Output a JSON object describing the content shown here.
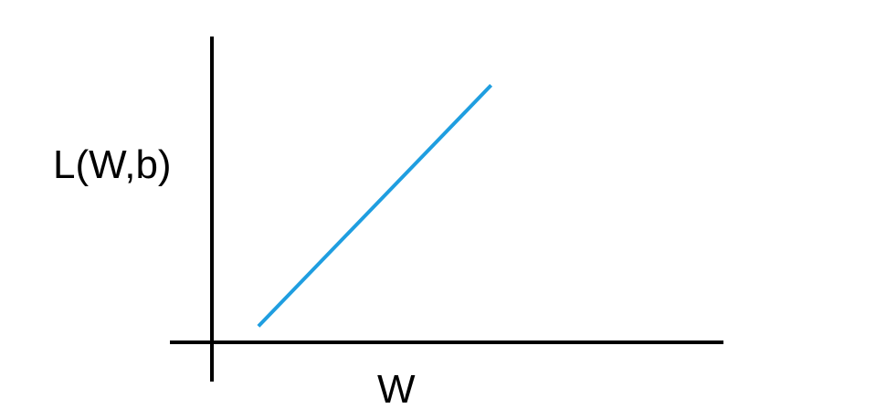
{
  "chart_data": {
    "type": "line",
    "title": "",
    "xlabel": "W",
    "ylabel": "L(W,b)",
    "xlim": [
      0,
      10
    ],
    "ylim": [
      0,
      10
    ],
    "grid": false,
    "legend": "none",
    "series": [
      {
        "color": "#1f9ee0",
        "x": [
          0.9,
          5.4
        ],
        "y": [
          0.5,
          8.0
        ]
      }
    ],
    "colors": {
      "axis": "#000000",
      "background": "#ffffff"
    }
  }
}
